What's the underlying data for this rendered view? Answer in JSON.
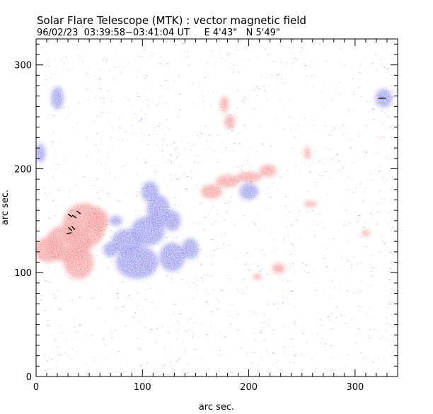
{
  "chart_data": {
    "type": "heatmap",
    "title": "Solar Flare Telescope (MTK) : vector magnetic field",
    "subtitle": "96/02/23  03:39:58−03:41:04 UT     E 4'43\"   N 5'49\"",
    "xlabel": "arc sec.",
    "ylabel": "arc sec.",
    "xlim": [
      0,
      340
    ],
    "ylim": [
      0,
      325
    ],
    "x_ticks": [
      0,
      100,
      200,
      300
    ],
    "y_ticks": [
      0,
      100,
      200,
      300
    ],
    "x_tick_labels": [
      "0",
      "100",
      "200",
      "300"
    ],
    "y_tick_labels": [
      "0",
      "100",
      "200",
      "300"
    ],
    "minor_tick_step": 10,
    "colors": {
      "positive_polarity": "#f04040",
      "negative_polarity": "#3a3ae0",
      "background": "#ffffff",
      "axis": "#000000"
    },
    "positive_regions": [
      {
        "x": 45,
        "y": 145,
        "rx": 20,
        "ry": 22
      },
      {
        "x": 30,
        "y": 128,
        "rx": 22,
        "ry": 18
      },
      {
        "x": 12,
        "y": 122,
        "rx": 14,
        "ry": 12
      },
      {
        "x": 40,
        "y": 110,
        "rx": 14,
        "ry": 16
      },
      {
        "x": 58,
        "y": 150,
        "rx": 10,
        "ry": 12
      },
      {
        "x": 165,
        "y": 178,
        "rx": 10,
        "ry": 7
      },
      {
        "x": 180,
        "y": 188,
        "rx": 11,
        "ry": 6
      },
      {
        "x": 200,
        "y": 192,
        "rx": 12,
        "ry": 5
      },
      {
        "x": 218,
        "y": 198,
        "rx": 8,
        "ry": 6
      },
      {
        "x": 177,
        "y": 262,
        "rx": 4,
        "ry": 8
      },
      {
        "x": 182,
        "y": 245,
        "rx": 5,
        "ry": 7
      },
      {
        "x": 228,
        "y": 104,
        "rx": 6,
        "ry": 5
      },
      {
        "x": 208,
        "y": 96,
        "rx": 4,
        "ry": 3
      },
      {
        "x": 255,
        "y": 215,
        "rx": 3,
        "ry": 6
      },
      {
        "x": 258,
        "y": 166,
        "rx": 6,
        "ry": 3
      },
      {
        "x": 310,
        "y": 138,
        "rx": 4,
        "ry": 3
      }
    ],
    "negative_regions": [
      {
        "x": 95,
        "y": 110,
        "rx": 20,
        "ry": 16
      },
      {
        "x": 85,
        "y": 130,
        "rx": 14,
        "ry": 12
      },
      {
        "x": 105,
        "y": 140,
        "rx": 16,
        "ry": 14
      },
      {
        "x": 115,
        "y": 160,
        "rx": 11,
        "ry": 15
      },
      {
        "x": 107,
        "y": 178,
        "rx": 8,
        "ry": 10
      },
      {
        "x": 128,
        "y": 150,
        "rx": 8,
        "ry": 10
      },
      {
        "x": 128,
        "y": 115,
        "rx": 12,
        "ry": 14
      },
      {
        "x": 145,
        "y": 123,
        "rx": 8,
        "ry": 10
      },
      {
        "x": 70,
        "y": 122,
        "rx": 7,
        "ry": 7
      },
      {
        "x": 200,
        "y": 178,
        "rx": 9,
        "ry": 8
      },
      {
        "x": 20,
        "y": 268,
        "rx": 6,
        "ry": 11
      },
      {
        "x": 327,
        "y": 268,
        "rx": 8,
        "ry": 9
      },
      {
        "x": 4,
        "y": 215,
        "rx": 5,
        "ry": 9
      },
      {
        "x": 75,
        "y": 150,
        "rx": 6,
        "ry": 5
      }
    ],
    "vector_markers": [
      {
        "x": 32,
        "y": 155,
        "angle": -35
      },
      {
        "x": 36,
        "y": 154,
        "angle": -35
      },
      {
        "x": 40,
        "y": 158,
        "angle": -35
      },
      {
        "x": 32,
        "y": 142,
        "angle": -45
      },
      {
        "x": 35,
        "y": 143,
        "angle": -45
      },
      {
        "x": 31,
        "y": 138,
        "angle": 10
      },
      {
        "x": 324,
        "y": 268,
        "angle": 0
      },
      {
        "x": 327,
        "y": 268,
        "angle": 0
      }
    ]
  }
}
